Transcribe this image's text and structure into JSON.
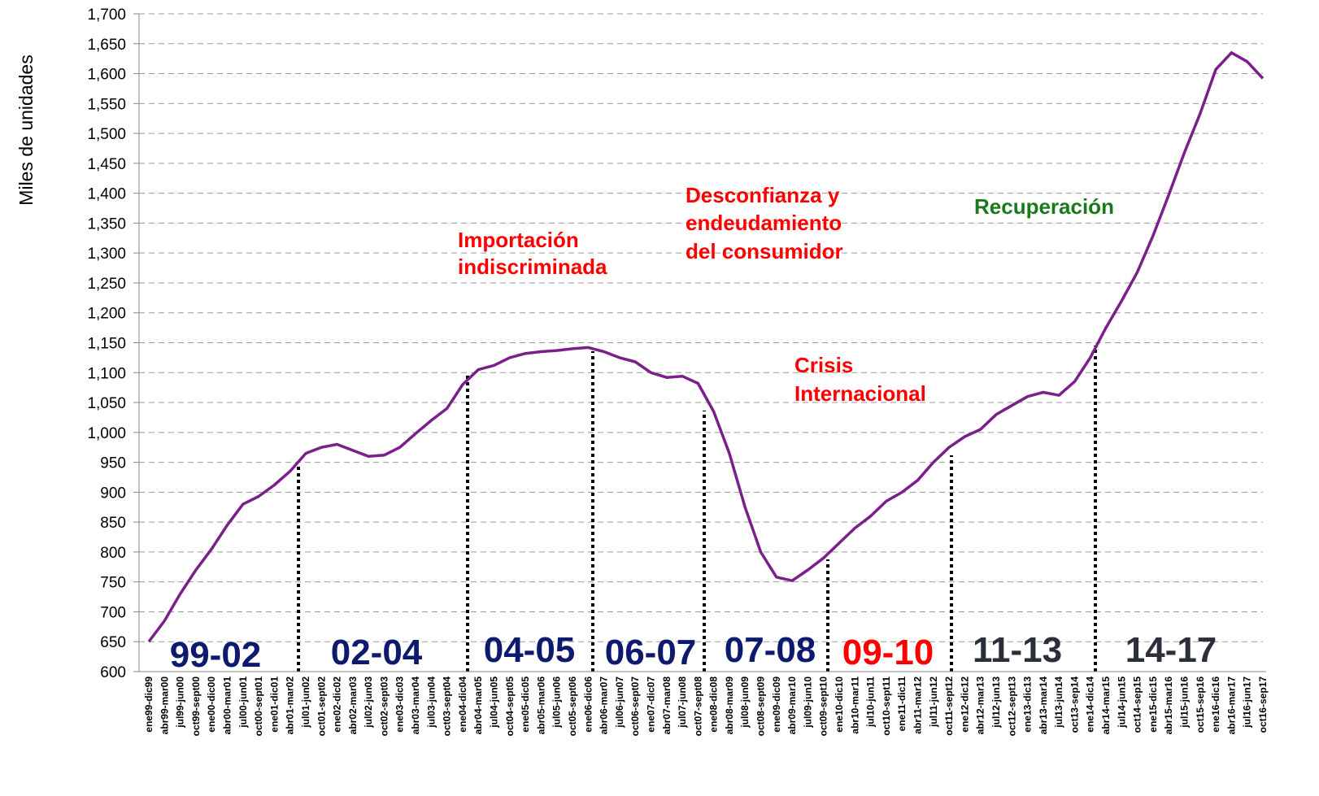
{
  "chart_data": {
    "type": "line",
    "y_label": "Miles de unidades",
    "categories": [
      "ene99-dic99",
      "abr99-mar00",
      "jul99-jun00",
      "oct99-sept00",
      "ene00-dic00",
      "abr00-mar01",
      "jul00-jun01",
      "oct00-sept01",
      "ene01-dic01",
      "abr01-mar02",
      "jul01-jun02",
      "oct01-sept02",
      "ene02-dic02",
      "abr02-mar03",
      "jul02-jun03",
      "oct02-sept03",
      "ene03-dic03",
      "abr03-mar04",
      "jul03-jun04",
      "oct03-sept04",
      "ene04-dic04",
      "abr04-mar05",
      "jul04-jun05",
      "oct04-sept05",
      "ene05-dic05",
      "abr05-mar06",
      "jul05-jun06",
      "oct05-sept06",
      "ene06-dic06",
      "abr06-mar07",
      "jul06-jun07",
      "oct06-sept07",
      "ene07-dic07",
      "abr07-mar08",
      "jul07-jun08",
      "oct07-sept08",
      "ene08-dic08",
      "abr08-mar09",
      "jul08-jun09",
      "oct08-sept09",
      "ene09-dic09",
      "abr09-mar10",
      "jul09-jun10",
      "oct09-sept10",
      "ene10-dic10",
      "abr10-mar11",
      "jul10-jun11",
      "oct10-sept11",
      "ene11-dic11",
      "abr11-mar12",
      "jul11-jun12",
      "oct11-sept12",
      "ene12-dic12",
      "abr12-mar13",
      "jul12-jun13",
      "oct12-sept13",
      "ene13-dic13",
      "abr13-mar14",
      "jul13-jun14",
      "oct13-sep14",
      "ene14-dic14",
      "abr14-mar15",
      "jul14-jun15",
      "oct14-sep15",
      "ene15-dic15",
      "abr15-mar16",
      "jul15-jun16",
      "oct15-sep16",
      "ene16-dic16",
      "abr16-mar17",
      "jul16-jun17",
      "oct16-sep17"
    ],
    "values": [
      650,
      685,
      730,
      770,
      805,
      845,
      880,
      893,
      912,
      935,
      965,
      975,
      980,
      970,
      960,
      962,
      975,
      998,
      1020,
      1040,
      1080,
      1105,
      1112,
      1125,
      1132,
      1135,
      1137,
      1140,
      1142,
      1135,
      1125,
      1118,
      1100,
      1092,
      1094,
      1082,
      1035,
      965,
      875,
      800,
      758,
      752,
      770,
      790,
      815,
      840,
      860,
      885,
      900,
      920,
      950,
      975,
      993,
      1005,
      1030,
      1045,
      1060,
      1067,
      1062,
      1085,
      1125,
      1175,
      1220,
      1268,
      1329,
      1397,
      1468,
      1533,
      1607,
      1635,
      1620,
      1592
    ],
    "color": "#7b1f8a",
    "ylim": [
      600,
      1700
    ],
    "yticks": [
      600,
      650,
      700,
      750,
      800,
      850,
      900,
      950,
      {
        "value": 1000,
        "label": "1,000"
      },
      {
        "value": 1050,
        "label": "1,050"
      },
      {
        "value": 1100,
        "label": "1,100"
      },
      {
        "value": 1150,
        "label": "1,150"
      },
      {
        "value": 1200,
        "label": "1,200"
      },
      {
        "value": 1250,
        "label": "1,250"
      },
      {
        "value": 1300,
        "label": "1,300"
      },
      {
        "value": 1350,
        "label": "1,350"
      },
      {
        "value": 1400,
        "label": "1,400"
      },
      {
        "value": 1450,
        "label": "1,450"
      },
      {
        "value": 1500,
        "label": "1,500"
      },
      {
        "value": 1550,
        "label": "1,550"
      },
      {
        "value": 1600,
        "label": "1,600"
      },
      {
        "value": 1650,
        "label": "1,650"
      },
      {
        "value": 1700,
        "label": "1,700"
      }
    ],
    "grid": true,
    "annotations": [
      {
        "lines": [
          "Importación",
          "indiscriminada"
        ]
      },
      {
        "lines": [
          "Desconfianza y",
          "endeudamiento",
          "del consumidor"
        ]
      },
      {
        "lines": [
          "Crisis",
          "Internacional"
        ]
      },
      {
        "lines": [
          "Recuperación"
        ]
      }
    ],
    "periods": [
      "99-02",
      "02-04",
      "04-05",
      "06-07",
      "07-08",
      "09-10",
      "11-13",
      "14-17"
    ]
  }
}
